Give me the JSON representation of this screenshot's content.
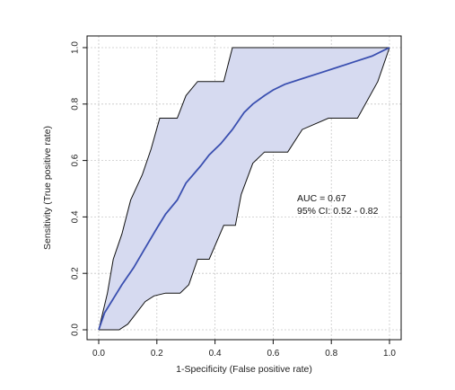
{
  "chart_data": {
    "type": "line",
    "title": "",
    "xlabel": "1-Specificity (False positive rate)",
    "ylabel": "Sensitivity (True positive rate)",
    "xlim": [
      0,
      1
    ],
    "ylim": [
      0,
      1
    ],
    "xticks": [
      "0.0",
      "0.2",
      "0.4",
      "0.6",
      "0.8",
      "1.0"
    ],
    "yticks": [
      "0.0",
      "0.2",
      "0.4",
      "0.6",
      "0.8",
      "1.0"
    ],
    "grid": true,
    "annotations": [
      "AUC = 0.67",
      "95% CI: 0.52 - 0.82"
    ],
    "colors": {
      "roc": "#3a4fb0",
      "band_fill": "#d6daf0",
      "band_edge": "#111111"
    },
    "series": [
      {
        "role": "roc",
        "x": [
          0,
          0.02,
          0.05,
          0.08,
          0.12,
          0.16,
          0.2,
          0.23,
          0.27,
          0.3,
          0.35,
          0.38,
          0.42,
          0.46,
          0.5,
          0.53,
          0.57,
          0.6,
          0.64,
          0.7,
          0.76,
          0.82,
          0.88,
          0.94,
          0.98,
          1.0
        ],
        "y": [
          0,
          0.06,
          0.11,
          0.16,
          0.22,
          0.29,
          0.36,
          0.41,
          0.46,
          0.52,
          0.58,
          0.62,
          0.66,
          0.71,
          0.77,
          0.8,
          0.83,
          0.85,
          0.87,
          0.89,
          0.91,
          0.93,
          0.95,
          0.97,
          0.99,
          1.0
        ]
      },
      {
        "role": "ci_upper",
        "x": [
          0,
          0.03,
          0.05,
          0.08,
          0.11,
          0.15,
          0.18,
          0.21,
          0.23,
          0.27,
          0.3,
          0.34,
          0.38,
          0.43,
          0.46,
          0.48,
          0.55,
          0.65,
          0.75,
          0.85,
          0.95,
          1.0
        ],
        "y": [
          0,
          0.13,
          0.25,
          0.34,
          0.46,
          0.55,
          0.64,
          0.75,
          0.75,
          0.75,
          0.83,
          0.88,
          0.88,
          0.88,
          1.0,
          1.0,
          1.0,
          1.0,
          1.0,
          1.0,
          1.0,
          1.0
        ]
      },
      {
        "role": "ci_lower",
        "x": [
          0,
          0.07,
          0.1,
          0.13,
          0.16,
          0.19,
          0.23,
          0.28,
          0.31,
          0.34,
          0.38,
          0.43,
          0.47,
          0.49,
          0.53,
          0.57,
          0.61,
          0.65,
          0.7,
          0.79,
          0.89,
          0.96,
          1.0
        ],
        "y": [
          0,
          0.0,
          0.02,
          0.06,
          0.1,
          0.12,
          0.13,
          0.13,
          0.16,
          0.25,
          0.25,
          0.37,
          0.37,
          0.48,
          0.59,
          0.63,
          0.63,
          0.63,
          0.71,
          0.75,
          0.75,
          0.88,
          1.0
        ]
      }
    ]
  }
}
